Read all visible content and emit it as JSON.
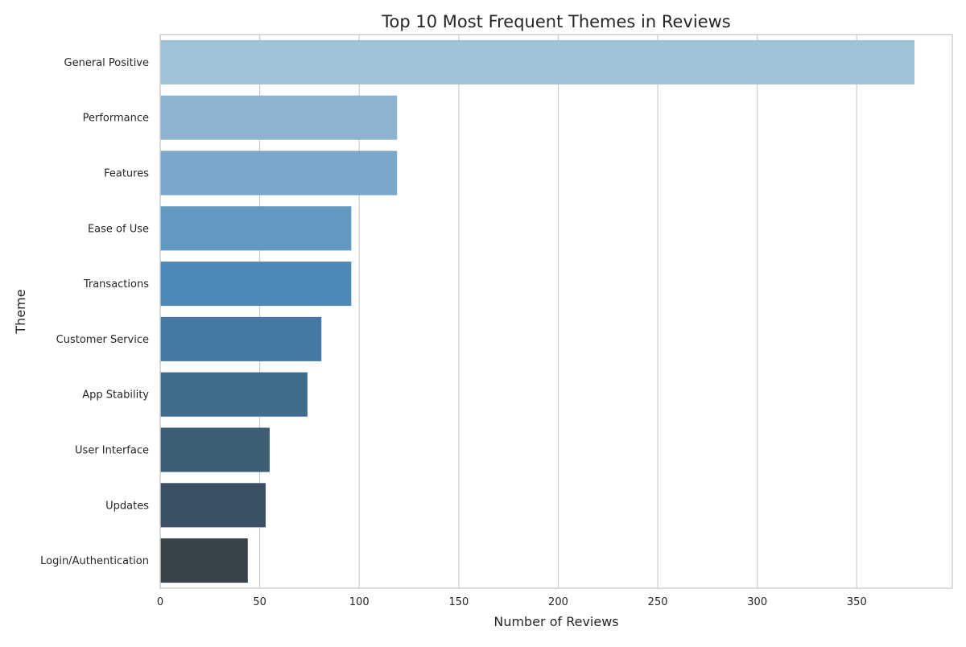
{
  "chart_data": {
    "type": "bar",
    "orientation": "horizontal",
    "title": "Top 10 Most Frequent Themes in Reviews",
    "xlabel": "Number of Reviews",
    "ylabel": "Theme",
    "xlim": [
      0,
      398
    ],
    "x_ticks": [
      0,
      50,
      100,
      150,
      200,
      250,
      300,
      350
    ],
    "grid": "vertical",
    "categories": [
      "General Positive",
      "Performance",
      "Features",
      "Ease of Use",
      "Transactions",
      "Customer Service",
      "App Stability",
      "User Interface",
      "Updates",
      "Login/Authentication"
    ],
    "values": [
      379,
      119,
      119,
      96,
      96,
      81,
      74,
      55,
      53,
      44
    ],
    "colors": [
      "#9fc2d8",
      "#8cb4d0",
      "#79a7c9",
      "#6399c1",
      "#4e8ab8",
      "#4579a3",
      "#406d8d",
      "#3d5f76",
      "#3b5163",
      "#374349"
    ]
  }
}
